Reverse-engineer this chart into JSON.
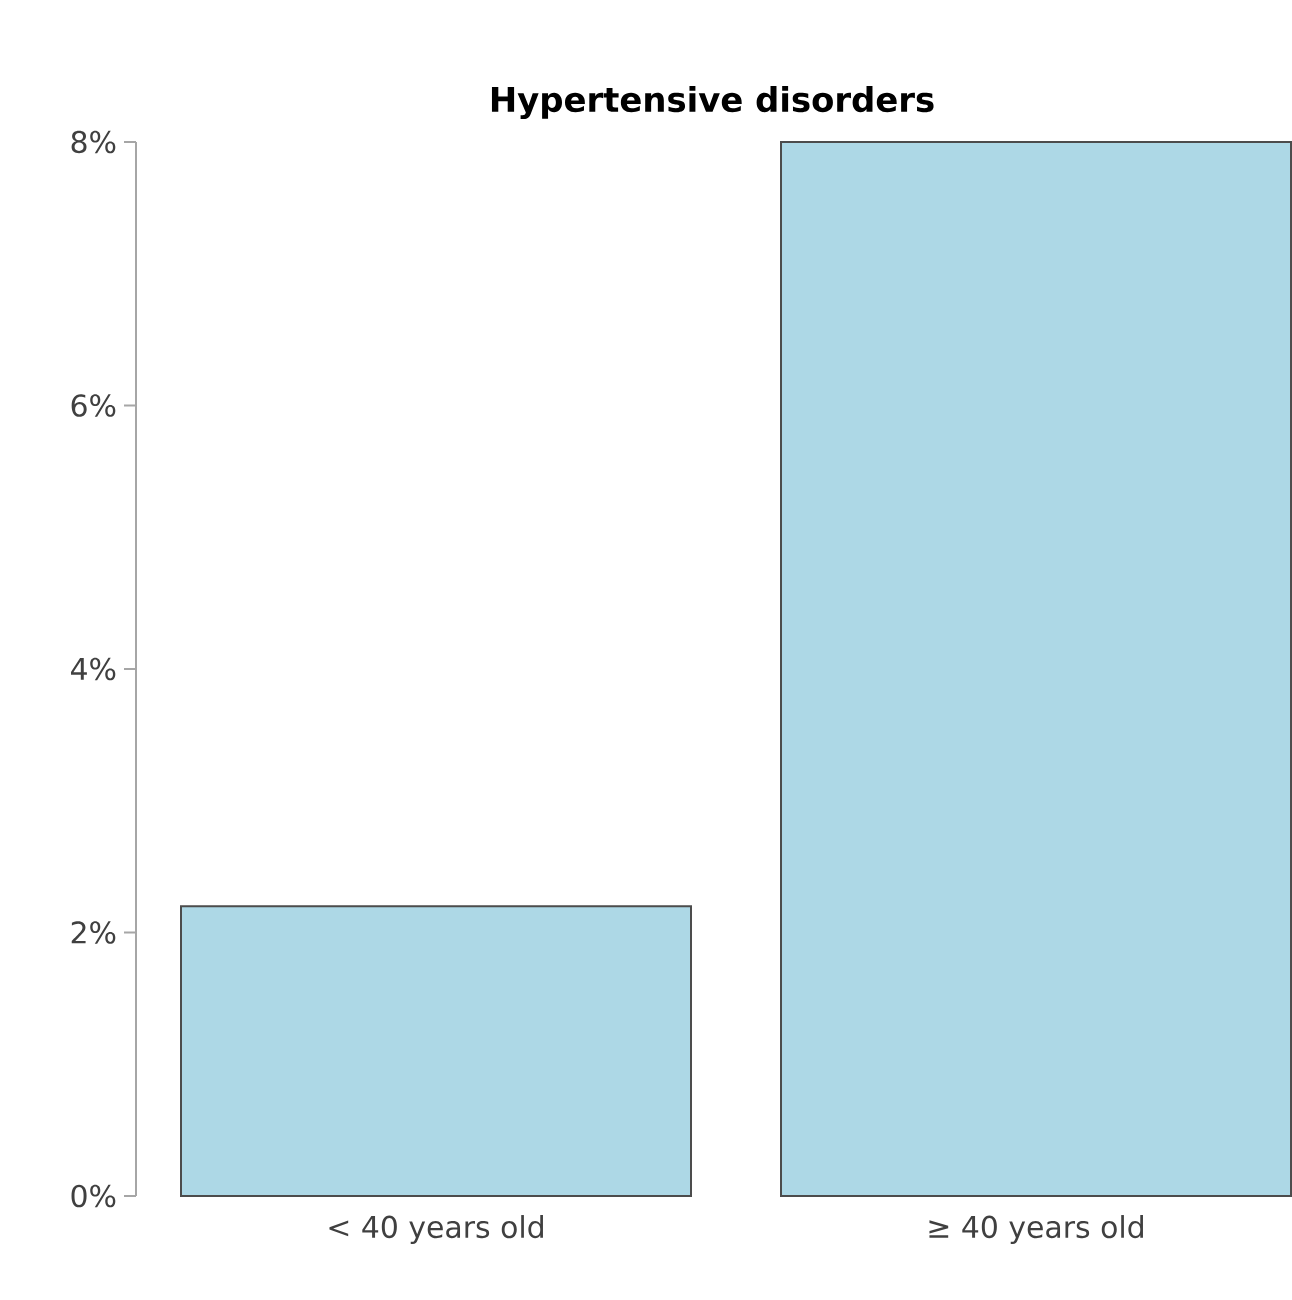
{
  "chart_data": {
    "type": "bar",
    "title": "Hypertensive disorders",
    "categories": [
      "< 40 years old",
      "≥ 40 years old"
    ],
    "values": [
      2.2,
      8.0
    ],
    "color": "#add8e6",
    "ylim": [
      0,
      8
    ],
    "yticks": [
      {
        "value": 0,
        "label": "0%"
      },
      {
        "value": 2,
        "label": "2%"
      },
      {
        "value": 4,
        "label": "4%"
      },
      {
        "value": 6,
        "label": "6%"
      },
      {
        "value": 8,
        "label": "8%"
      }
    ]
  }
}
